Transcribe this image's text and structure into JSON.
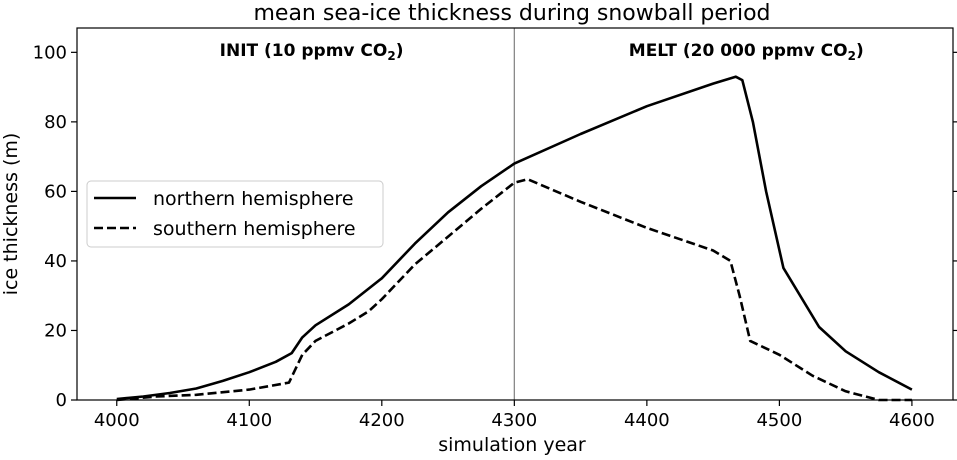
{
  "chart_data": {
    "type": "line",
    "title": "mean sea-ice thickness during snowball period",
    "xlabel": "simulation year",
    "ylabel": "ice thickness (m)",
    "xlim": [
      3970,
      4631
    ],
    "ylim": [
      0,
      107
    ],
    "xticks": [
      4000,
      4100,
      4200,
      4300,
      4400,
      4500,
      4600
    ],
    "yticks": [
      0,
      20,
      40,
      60,
      80,
      100
    ],
    "grid": false,
    "legend_position": "center-left",
    "vline": 4300,
    "annotations": [
      {
        "label": "INIT (10 ppmv CO",
        "sub": "2",
        "close": ")",
        "x": 4147
      },
      {
        "label": "MELT (20 000 ppmv CO",
        "sub": "2",
        "close": ")",
        "x": 4475
      }
    ],
    "series": [
      {
        "name": "northern hemisphere",
        "style": "solid",
        "x": [
          4000,
          4020,
          4040,
          4060,
          4080,
          4100,
          4120,
          4132,
          4140,
          4150,
          4175,
          4200,
          4225,
          4250,
          4275,
          4300,
          4350,
          4400,
          4450,
          4467,
          4472,
          4480,
          4490,
          4503,
          4530,
          4550,
          4575,
          4600
        ],
        "y": [
          0.3,
          1,
          2,
          3.3,
          5.5,
          8,
          11,
          13.5,
          18,
          21.5,
          27.5,
          35,
          45,
          54,
          61.5,
          68,
          76.5,
          84.5,
          91,
          93,
          92,
          80,
          60,
          38,
          21,
          14,
          8,
          3
        ]
      },
      {
        "name": "southern hemisphere",
        "style": "dashed",
        "x": [
          4000,
          4030,
          4060,
          4100,
          4130,
          4140,
          4150,
          4175,
          4190,
          4200,
          4225,
          4250,
          4275,
          4300,
          4310,
          4350,
          4400,
          4450,
          4463,
          4470,
          4478,
          4500,
          4525,
          4550,
          4575,
          4600
        ],
        "y": [
          0,
          1,
          1.5,
          3,
          5,
          13,
          17,
          22,
          25.5,
          29,
          39,
          47,
          55,
          62.5,
          63.5,
          57,
          49.5,
          43,
          40,
          30,
          17,
          13,
          7,
          2.5,
          0,
          0
        ]
      }
    ]
  }
}
